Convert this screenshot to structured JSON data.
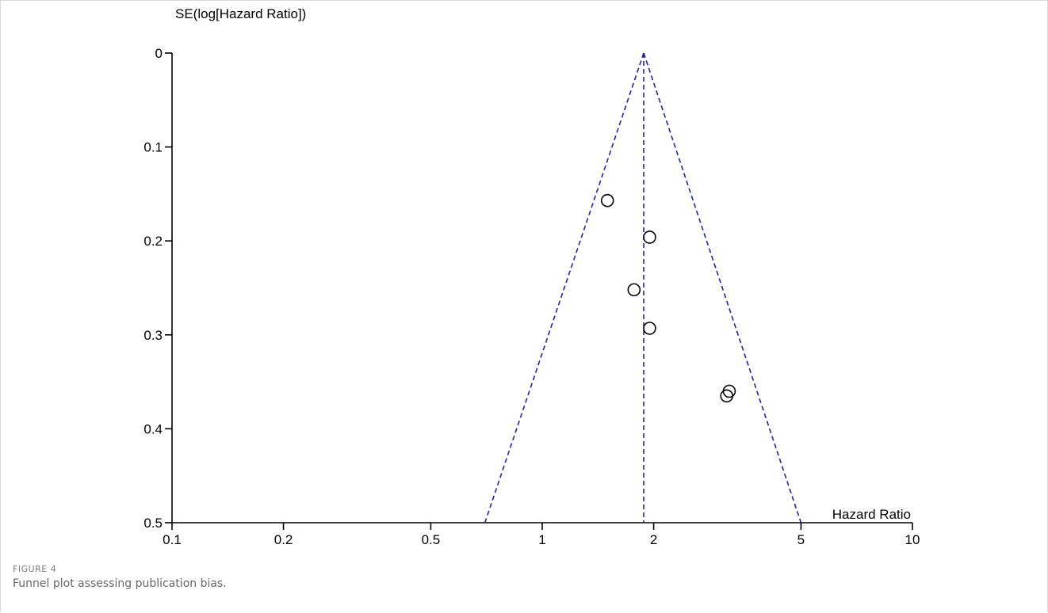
{
  "figure": {
    "label": "FIGURE 4",
    "caption": "Funnel plot assessing publication bias."
  },
  "chart_data": {
    "type": "scatter",
    "xlabel": "Hazard Ratio",
    "ylabel": "SE(log[Hazard Ratio])",
    "x_scale": "log",
    "xlim": [
      0.1,
      10
    ],
    "ylim": [
      0,
      0.5
    ],
    "y_inverted": true,
    "x_ticks": [
      0.1,
      0.2,
      0.5,
      1,
      2,
      5,
      10
    ],
    "x_tick_labels": [
      "0.1",
      "0.2",
      "0.5",
      "1",
      "2",
      "5",
      "10"
    ],
    "y_ticks": [
      0,
      0.1,
      0.2,
      0.3,
      0.4,
      0.5
    ],
    "y_tick_labels": [
      "0",
      "0.1",
      "0.2",
      "0.3",
      "0.4",
      "0.5"
    ],
    "points": [
      {
        "x": 1.5,
        "y": 0.157
      },
      {
        "x": 1.95,
        "y": 0.196
      },
      {
        "x": 1.77,
        "y": 0.252
      },
      {
        "x": 1.95,
        "y": 0.293
      },
      {
        "x": 3.2,
        "y": 0.36
      },
      {
        "x": 3.15,
        "y": 0.365
      }
    ],
    "pooled_estimate": 1.88,
    "funnel_lines": [
      {
        "from": [
          1.88,
          0
        ],
        "to": [
          0.7,
          0.5
        ]
      },
      {
        "from": [
          1.88,
          0
        ],
        "to": [
          5.0,
          0.5
        ]
      }
    ],
    "funnel_color": "#2020b0",
    "grid": false,
    "legend": "none"
  }
}
